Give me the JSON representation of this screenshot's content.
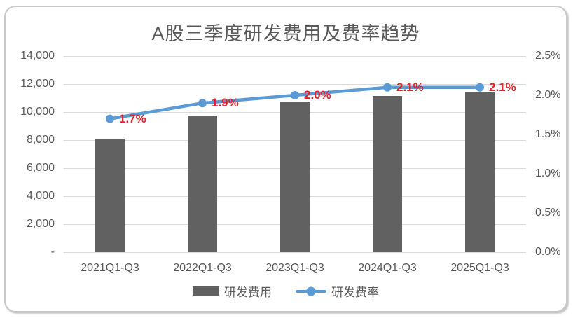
{
  "chart_data": {
    "type": "bar",
    "combo": "bar+line dual axis",
    "title": "A股三季度研发费用及费率趋势",
    "categories": [
      "2021Q1-Q3",
      "2022Q1-Q3",
      "2023Q1-Q3",
      "2024Q1-Q3",
      "2025Q1-Q3"
    ],
    "series": [
      {
        "name": "研发费用",
        "type": "bar",
        "axis": "left",
        "values": [
          8100,
          9750,
          10700,
          11150,
          11400
        ],
        "color": "#616161"
      },
      {
        "name": "研发费率",
        "type": "line",
        "axis": "right",
        "values": [
          1.7,
          1.9,
          2.0,
          2.1,
          2.1
        ],
        "point_labels": [
          "1.7%",
          "1.9%",
          "2.0%",
          "2.1%",
          "2.1%"
        ],
        "color": "#5b9bd5",
        "label_color": "#e0222a"
      }
    ],
    "left_axis": {
      "min": 0,
      "max": 14000,
      "tick_labels": [
        "14,000",
        "12,000",
        "10,000",
        "8,000",
        "6,000",
        "4,000",
        "2,000",
        "-"
      ]
    },
    "right_axis": {
      "min": 0,
      "max": 2.5,
      "tick_labels": [
        "2.5%",
        "2.0%",
        "1.5%",
        "1.0%",
        "0.5%",
        "0.0%"
      ]
    },
    "grid": true,
    "legend_position": "bottom",
    "colors": {
      "grid": "#d9d9d9",
      "axis_text": "#595959",
      "title_text": "#595959",
      "border": "#c9c9c9"
    }
  }
}
